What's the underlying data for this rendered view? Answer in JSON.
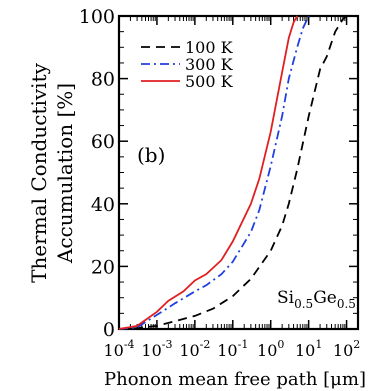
{
  "chart_data": {
    "type": "line",
    "panel_label": "(b)",
    "annotation": {
      "base1": "Si",
      "sub1": "0.5",
      "base2": "Ge",
      "sub2": "0.5"
    },
    "xlabel": "Phonon mean free path [μm]",
    "ylabel_lines": [
      "Thermal Conductivity",
      "Accumulation [%]"
    ],
    "x_scale": "log",
    "xlim": [
      0.0001,
      200
    ],
    "ylim": [
      0,
      100
    ],
    "x_ticks": [
      {
        "value": 0.0001,
        "base": "10",
        "exp": "-4"
      },
      {
        "value": 0.001,
        "base": "10",
        "exp": "-3"
      },
      {
        "value": 0.01,
        "base": "10",
        "exp": "-2"
      },
      {
        "value": 0.1,
        "base": "10",
        "exp": "-1"
      },
      {
        "value": 1,
        "base": "10",
        "exp": "0"
      },
      {
        "value": 10,
        "base": "10",
        "exp": "1"
      },
      {
        "value": 100,
        "base": "10",
        "exp": "2"
      }
    ],
    "y_ticks": [
      0,
      20,
      40,
      60,
      80,
      100
    ],
    "legend_position": "top-right",
    "series": [
      {
        "name": "100 K",
        "color": "#000000",
        "dash": "dashed",
        "x": [
          0.0001,
          0.0003,
          0.001,
          0.003,
          0.01,
          0.03,
          0.1,
          0.3,
          1,
          2,
          3,
          5,
          10,
          20,
          30,
          50,
          80,
          100
        ],
        "y": [
          0,
          0.3,
          1.0,
          2.5,
          4.2,
          6.5,
          10.5,
          16,
          25,
          33,
          40,
          51,
          68,
          83,
          87,
          95,
          99,
          100
        ]
      },
      {
        "name": "300 K",
        "color": "#2040e0",
        "dash": "dashdot",
        "x": [
          0.0001,
          0.0003,
          0.001,
          0.003,
          0.01,
          0.02,
          0.05,
          0.1,
          0.3,
          0.5,
          1,
          2,
          3,
          5,
          7,
          10
        ],
        "y": [
          0,
          0.5,
          4.5,
          8.2,
          12,
          14,
          17.5,
          21.5,
          31,
          38,
          52,
          68,
          80,
          90,
          96,
          100
        ]
      },
      {
        "name": "500 K",
        "color": "#e02020",
        "dash": "solid",
        "x": [
          0.0001,
          0.0003,
          0.001,
          0.002,
          0.005,
          0.01,
          0.02,
          0.05,
          0.1,
          0.3,
          0.5,
          1,
          2,
          3,
          4,
          5
        ],
        "y": [
          0,
          1,
          5.5,
          9,
          12,
          15.5,
          17.5,
          22,
          28,
          40,
          48,
          63,
          82,
          93,
          98,
          100
        ]
      }
    ]
  }
}
